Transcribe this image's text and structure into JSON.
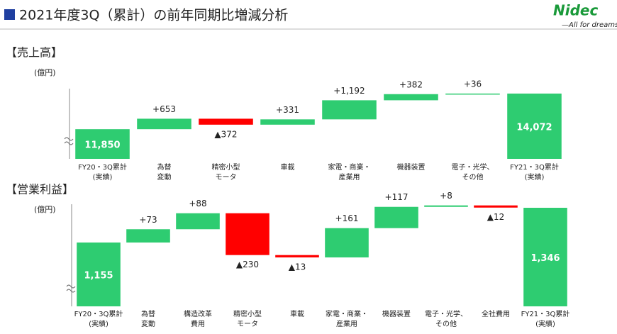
{
  "header": {
    "title": "2021年度3Q（累計）の前年同期比増減分析",
    "logo": "Nidec",
    "tagline": "—All for dreams"
  },
  "chart_data": [
    {
      "type": "waterfall",
      "title": "【売上高】",
      "unit": "(億円)",
      "categories": [
        [
          "FY20・3Q累計",
          "(実績)"
        ],
        [
          "為替",
          "変動"
        ],
        [
          "精密小型",
          "モータ"
        ],
        [
          "車載"
        ],
        [
          "家電・商業・",
          "産業用"
        ],
        [
          "機器装置"
        ],
        [
          "電子・光学、",
          "その他"
        ],
        [
          "FY21・3Q累計",
          "(実績)"
        ]
      ],
      "values": [
        11850,
        653,
        -372,
        331,
        1192,
        382,
        36,
        14072
      ],
      "value_labels": [
        "11,850",
        "+653",
        "▲372",
        "+331",
        "+1,192",
        "+382",
        "+36",
        "14,072"
      ],
      "ylim": [
        10000,
        14600
      ],
      "color": "#2ecc71",
      "negative_color": "#ff0000"
    },
    {
      "type": "waterfall",
      "title": "【営業利益】",
      "unit": "(億円)",
      "categories": [
        [
          "FY20・3Q累計",
          "(実績)"
        ],
        [
          "為替",
          "変動"
        ],
        [
          "構造改革",
          "費用"
        ],
        [
          "精密小型",
          "モータ"
        ],
        [
          "車載"
        ],
        [
          "家電・商業・",
          "産業用"
        ],
        [
          "機器装置"
        ],
        [
          "電子・光学、",
          "その他"
        ],
        [
          "全社費用"
        ],
        [
          "FY21・3Q累計",
          "(実績)"
        ]
      ],
      "values": [
        1155,
        73,
        88,
        -230,
        -13,
        161,
        117,
        8,
        -12,
        1346
      ],
      "value_labels": [
        "1,155",
        "+73",
        "+88",
        "▲230",
        "▲13",
        "+161",
        "+117",
        "+8",
        "▲12",
        "1,346"
      ],
      "ylim": [
        804,
        1385
      ],
      "color": "#2ecc71",
      "negative_color": "#ff0000"
    }
  ]
}
